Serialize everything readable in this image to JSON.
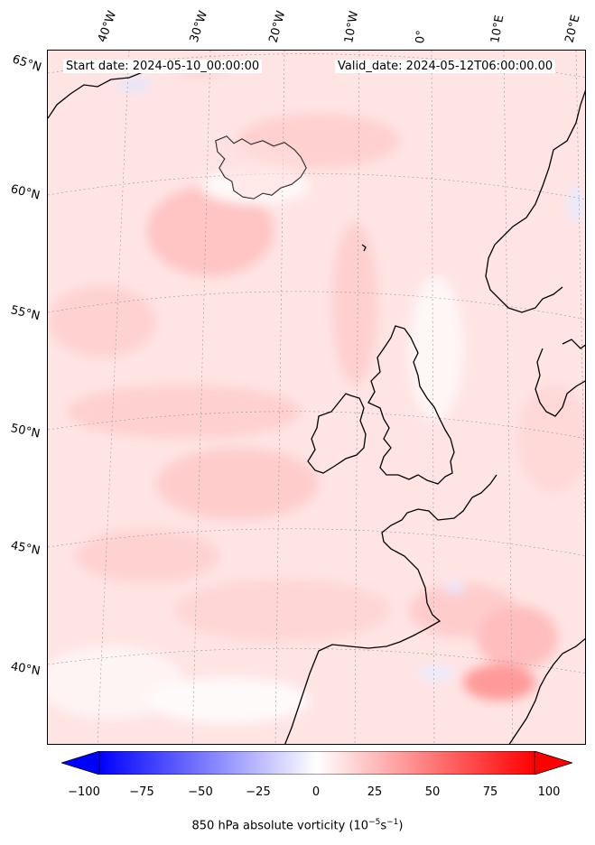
{
  "map": {
    "start_date": "Start date: 2024-05-10_00:00:00",
    "valid_date": "Valid_date: 2024-05-12T06:00:00.00",
    "lon_labels": [
      "40°W",
      "30°W",
      "20°W",
      "10°W",
      "0°",
      "10°E",
      "20°E"
    ],
    "lat_labels": [
      "65°N",
      "60°N",
      "55°N",
      "50°N",
      "45°N",
      "40°N"
    ],
    "field": "850 hPa absolute vorticity",
    "coastline_color": "#000000",
    "gridline_style": "dotted grey"
  },
  "colorbar": {
    "label_prefix": "850 hPa absolute vorticity (10",
    "exp1": "−5",
    "label_mid": "s",
    "exp2": "−1",
    "label_suffix": ")",
    "ticks": [
      "−100",
      "−75",
      "−50",
      "−25",
      "0",
      "25",
      "50",
      "75",
      "100"
    ],
    "range": [
      -100,
      100
    ],
    "colormap": "bwr",
    "low_color": "#0000ff",
    "mid_color": "#ffffff",
    "high_color": "#ff0000",
    "extend": "both"
  }
}
